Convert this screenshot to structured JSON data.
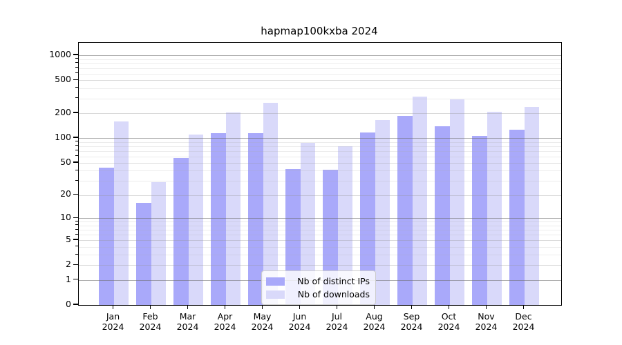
{
  "chart_data": {
    "type": "bar",
    "title": "hapmap100kxba 2024",
    "categories": [
      "Jan",
      "Feb",
      "Mar",
      "Apr",
      "May",
      "Jun",
      "Jul",
      "Aug",
      "Sep",
      "Oct",
      "Nov",
      "Dec"
    ],
    "x_tick_year": "2024",
    "series": [
      {
        "name": "Nb of distinct IPs",
        "color": "#a9a9fa",
        "values": [
          44,
          16,
          57,
          114,
          114,
          42,
          41,
          118,
          185,
          140,
          106,
          127
        ]
      },
      {
        "name": "Nb of downloads",
        "color": "#d9d9fa",
        "values": [
          160,
          29,
          111,
          203,
          265,
          88,
          79,
          167,
          315,
          295,
          209,
          237
        ]
      }
    ],
    "yscale": "log1p",
    "ylim": [
      0,
      1400
    ],
    "ytick_labels": [
      "0",
      "1",
      "2",
      "5",
      "10",
      "20",
      "50",
      "100",
      "200",
      "500",
      "1000"
    ],
    "yticks_major": [
      1,
      10,
      100,
      1000
    ],
    "yticks_mid": [
      2,
      5,
      20,
      50,
      200,
      500
    ],
    "yticks_minor": [
      3,
      4,
      6,
      7,
      8,
      9,
      30,
      40,
      60,
      70,
      80,
      90,
      300,
      400,
      600,
      700,
      800,
      900
    ],
    "grid": "on",
    "legend_position": "bottom-center",
    "xlabel": "",
    "ylabel": ""
  }
}
